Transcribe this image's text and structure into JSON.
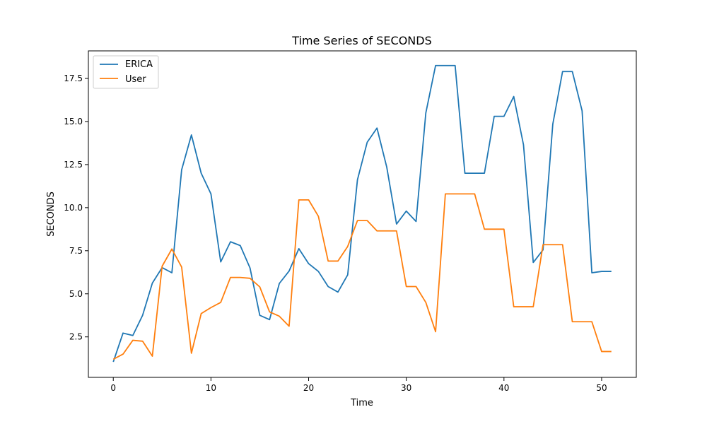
{
  "chart_data": {
    "type": "line",
    "title": "Time Series of SECONDS",
    "xlabel": "Time",
    "ylabel": "SECONDS",
    "xlim": [
      -2.55,
      53.55
    ],
    "ylim": [
      0.15,
      19.1
    ],
    "xticks": [
      0,
      10,
      20,
      30,
      40,
      50
    ],
    "xtick_labels": [
      "0",
      "10",
      "20",
      "30",
      "40",
      "50"
    ],
    "yticks": [
      2.5,
      5.0,
      7.5,
      10.0,
      12.5,
      15.0,
      17.5
    ],
    "ytick_labels": [
      "2.5",
      "5.0",
      "7.5",
      "10.0",
      "12.5",
      "15.0",
      "17.5"
    ],
    "grid": false,
    "legend_position": "top-left",
    "x": [
      0,
      1,
      2,
      3,
      4,
      5,
      6,
      7,
      8,
      9,
      10,
      11,
      12,
      13,
      14,
      15,
      16,
      17,
      18,
      19,
      20,
      21,
      22,
      23,
      24,
      25,
      26,
      27,
      28,
      29,
      30,
      31,
      32,
      33,
      34,
      35,
      36,
      37,
      38,
      39,
      40,
      41,
      42,
      43,
      44,
      45,
      46,
      47,
      48,
      49,
      50,
      51
    ],
    "series": [
      {
        "name": "ERICA",
        "color": "#1f77b4",
        "values": [
          1.05,
          2.72,
          2.58,
          3.75,
          5.62,
          6.52,
          6.22,
          12.2,
          14.22,
          12.0,
          10.8,
          6.85,
          8.02,
          7.8,
          6.5,
          3.75,
          3.5,
          5.6,
          6.32,
          7.62,
          6.75,
          6.3,
          5.42,
          5.1,
          6.1,
          11.62,
          13.8,
          14.62,
          12.35,
          9.05,
          9.8,
          9.2,
          15.5,
          18.25,
          18.25,
          18.25,
          12.0,
          12.0,
          12.0,
          15.3,
          15.3,
          16.45,
          13.65,
          6.82,
          7.55,
          14.85,
          17.9,
          17.9,
          15.62,
          6.22,
          6.3,
          6.3
        ]
      },
      {
        "name": "User",
        "color": "#ff7f0e",
        "values": [
          1.2,
          1.5,
          2.3,
          2.25,
          1.38,
          6.6,
          7.6,
          6.55,
          1.55,
          3.85,
          4.2,
          4.5,
          5.95,
          5.95,
          5.9,
          5.4,
          3.95,
          3.7,
          3.12,
          10.45,
          10.45,
          9.5,
          6.9,
          6.9,
          7.75,
          9.25,
          9.25,
          8.65,
          8.65,
          8.65,
          5.42,
          5.42,
          4.5,
          2.8,
          10.8,
          10.8,
          10.8,
          10.8,
          8.75,
          8.75,
          8.75,
          4.25,
          4.25,
          4.25,
          7.85,
          7.85,
          7.85,
          3.38,
          3.38,
          3.38,
          1.65,
          1.65
        ]
      }
    ]
  }
}
